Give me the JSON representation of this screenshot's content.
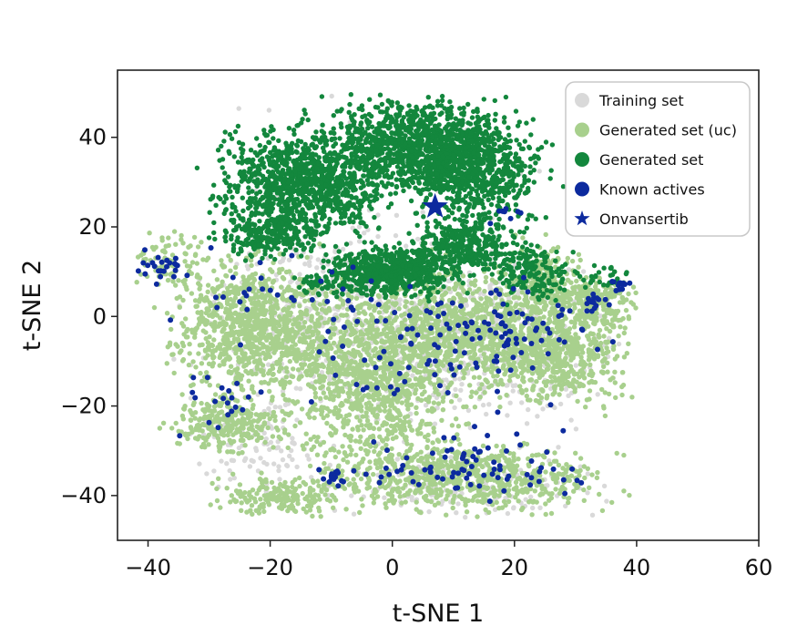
{
  "chart_data": {
    "type": "scatter",
    "title": "",
    "xlabel": "t-SNE 1",
    "ylabel": "t-SNE 2",
    "xlim": [
      -45,
      60
    ],
    "ylim": [
      -50,
      55
    ],
    "xticks": [
      -40,
      -20,
      0,
      20,
      40,
      60
    ],
    "yticks": [
      -40,
      -20,
      0,
      20,
      40
    ],
    "xtick_labels": [
      "−40",
      "−20",
      "0",
      "20",
      "40",
      "60"
    ],
    "ytick_labels": [
      "−40",
      "−20",
      "0",
      "20",
      "40"
    ],
    "grid": false,
    "legend_placement": "top-right",
    "series": [
      {
        "name": "Training set",
        "color": "#d9d9d9",
        "marker": "circle",
        "clusters": [
          {
            "center": [
              -10,
              0
            ],
            "spread": [
              14,
              13
            ],
            "count": 450
          },
          {
            "center": [
              15,
              -5
            ],
            "spread": [
              14,
              13
            ],
            "count": 450
          },
          {
            "center": [
              10,
              -38
            ],
            "spread": [
              16,
              5
            ],
            "count": 160
          },
          {
            "center": [
              -22,
              -28
            ],
            "spread": [
              8,
              7
            ],
            "count": 90
          },
          {
            "center": [
              0,
              35
            ],
            "spread": [
              18,
              10
            ],
            "count": 40
          }
        ]
      },
      {
        "name": "Generated set (uc)",
        "color": "#a8d08d",
        "marker": "circle",
        "clusters": [
          {
            "center": [
              -22,
              -2
            ],
            "spread": [
              9,
              10
            ],
            "count": 1000
          },
          {
            "center": [
              -3,
              -14
            ],
            "spread": [
              9,
              13
            ],
            "count": 1000
          },
          {
            "center": [
              15,
              -3
            ],
            "spread": [
              13,
              9
            ],
            "count": 1000
          },
          {
            "center": [
              28,
              -9
            ],
            "spread": [
              8,
              7
            ],
            "count": 450
          },
          {
            "center": [
              12,
              -36
            ],
            "spread": [
              15,
              5
            ],
            "count": 700
          },
          {
            "center": [
              -27,
              -24
            ],
            "spread": [
              6,
              4
            ],
            "count": 280
          },
          {
            "center": [
              -18,
              -40
            ],
            "spread": [
              7,
              3
            ],
            "count": 200
          },
          {
            "center": [
              25,
              8
            ],
            "spread": [
              4,
              6
            ],
            "count": 200
          },
          {
            "center": [
              -36,
              13
            ],
            "spread": [
              4,
              4
            ],
            "count": 80
          },
          {
            "center": [
              33,
              3
            ],
            "spread": [
              5,
              4
            ],
            "count": 180
          }
        ]
      },
      {
        "name": "Generated set",
        "color": "#13873d",
        "marker": "circle",
        "clusters": [
          {
            "center": [
              -15,
              30
            ],
            "spread": [
              9,
              8
            ],
            "count": 1000
          },
          {
            "center": [
              4,
              38
            ],
            "spread": [
              10,
              7
            ],
            "count": 1100
          },
          {
            "center": [
              14,
              32
            ],
            "spread": [
              7,
              8
            ],
            "count": 600
          },
          {
            "center": [
              0,
              10
            ],
            "spread": [
              7,
              3.5
            ],
            "count": 650
          },
          {
            "center": [
              12,
              16
            ],
            "spread": [
              6,
              4
            ],
            "count": 350
          },
          {
            "center": [
              -20,
              18
            ],
            "spread": [
              6,
              3
            ],
            "count": 220
          },
          {
            "center": [
              23,
              10
            ],
            "spread": [
              4,
              4
            ],
            "count": 160
          },
          {
            "center": [
              -12,
              7
            ],
            "spread": [
              3,
              2
            ],
            "count": 40
          },
          {
            "center": [
              35,
              9
            ],
            "spread": [
              3,
              2
            ],
            "count": 30
          }
        ]
      },
      {
        "name": "Known actives",
        "color": "#0c2a9e",
        "marker": "circle",
        "clusters": [
          {
            "center": [
              -38,
              11
            ],
            "spread": [
              3,
              2
            ],
            "count": 25
          },
          {
            "center": [
              -22,
              5
            ],
            "spread": [
              9,
              6
            ],
            "count": 25
          },
          {
            "center": [
              5,
              -5
            ],
            "spread": [
              14,
              10
            ],
            "count": 90
          },
          {
            "center": [
              22,
              -3
            ],
            "spread": [
              9,
              8
            ],
            "count": 60
          },
          {
            "center": [
              12,
              -33
            ],
            "spread": [
              13,
              5
            ],
            "count": 80
          },
          {
            "center": [
              -9,
              -36
            ],
            "spread": [
              1.5,
              1.2
            ],
            "count": 14
          },
          {
            "center": [
              33,
              3
            ],
            "spread": [
              1.5,
              1.2
            ],
            "count": 14
          },
          {
            "center": [
              37,
              7
            ],
            "spread": [
              1.5,
              1
            ],
            "count": 12
          },
          {
            "center": [
              -27,
              -20
            ],
            "spread": [
              6,
              6
            ],
            "count": 20
          },
          {
            "center": [
              18,
              23
            ],
            "spread": [
              3,
              2
            ],
            "count": 8
          }
        ]
      },
      {
        "name": "Onvansertib",
        "color": "#0c2a9e",
        "marker": "star",
        "points": [
          [
            7,
            24.5
          ]
        ]
      }
    ]
  }
}
